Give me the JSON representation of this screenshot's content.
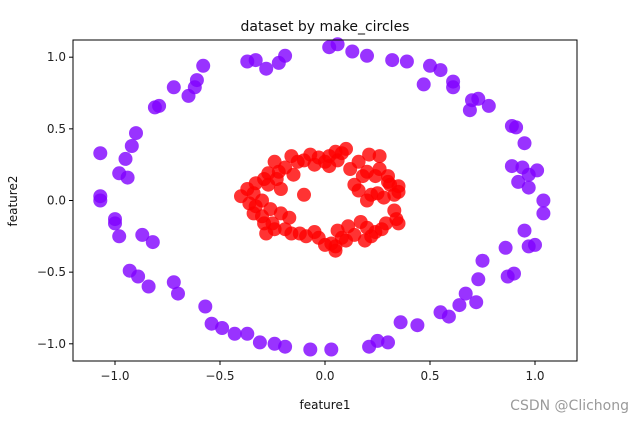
{
  "chart_data": {
    "type": "scatter",
    "title": "dataset by make_circles",
    "xlabel": "feature1",
    "ylabel": "feature2",
    "xlim": [
      -1.2,
      1.2
    ],
    "ylim": [
      -1.12,
      1.12
    ],
    "xticks": [
      -1.0,
      -0.5,
      0.0,
      0.5,
      1.0
    ],
    "xtick_labels": [
      "−1.0",
      "−0.5",
      "0.0",
      "0.5",
      "1.0"
    ],
    "yticks": [
      -1.0,
      -0.5,
      0.0,
      0.5,
      1.0
    ],
    "ytick_labels": [
      "−1.0",
      "−0.5",
      "0.0",
      "0.5",
      "1.0"
    ],
    "grid": false,
    "series": [
      {
        "color": "#8000ff",
        "points": [
          [
            -0.58,
            0.94
          ],
          [
            -0.37,
            0.97
          ],
          [
            -0.33,
            0.98
          ],
          [
            -0.28,
            0.92
          ],
          [
            -0.22,
            0.96
          ],
          [
            -0.19,
            1.01
          ],
          [
            0.02,
            1.07
          ],
          [
            0.06,
            1.09
          ],
          [
            0.13,
            1.04
          ],
          [
            0.2,
            1.01
          ],
          [
            0.32,
            0.98
          ],
          [
            0.39,
            0.97
          ],
          [
            0.5,
            0.94
          ],
          [
            0.55,
            0.91
          ],
          [
            0.61,
            0.83
          ],
          [
            0.47,
            0.81
          ],
          [
            0.61,
            0.79
          ],
          [
            0.7,
            0.7
          ],
          [
            0.73,
            0.71
          ],
          [
            0.78,
            0.66
          ],
          [
            0.69,
            0.63
          ],
          [
            0.89,
            0.52
          ],
          [
            0.91,
            0.51
          ],
          [
            0.95,
            0.4
          ],
          [
            0.89,
            0.24
          ],
          [
            0.94,
            0.23
          ],
          [
            0.97,
            0.18
          ],
          [
            1.01,
            0.21
          ],
          [
            0.92,
            0.13
          ],
          [
            0.97,
            0.09
          ],
          [
            1.04,
            0.0
          ],
          [
            1.04,
            -0.09
          ],
          [
            0.95,
            -0.21
          ],
          [
            0.97,
            -0.32
          ],
          [
            1.0,
            -0.31
          ],
          [
            0.86,
            -0.33
          ],
          [
            0.9,
            -0.51
          ],
          [
            0.87,
            -0.53
          ],
          [
            0.75,
            -0.42
          ],
          [
            0.73,
            -0.55
          ],
          [
            0.67,
            -0.65
          ],
          [
            0.72,
            -0.71
          ],
          [
            0.64,
            -0.73
          ],
          [
            0.55,
            -0.78
          ],
          [
            0.59,
            -0.81
          ],
          [
            0.44,
            -0.87
          ],
          [
            0.36,
            -0.85
          ],
          [
            0.3,
            -0.99
          ],
          [
            0.25,
            -0.98
          ],
          [
            0.21,
            -1.02
          ],
          [
            0.03,
            -1.04
          ],
          [
            -0.07,
            -1.04
          ],
          [
            -0.19,
            -1.02
          ],
          [
            -0.24,
            -1.0
          ],
          [
            -0.31,
            -0.99
          ],
          [
            -0.37,
            -0.93
          ],
          [
            -0.43,
            -0.93
          ],
          [
            -0.49,
            -0.89
          ],
          [
            -0.54,
            -0.86
          ],
          [
            -0.57,
            -0.74
          ],
          [
            -0.7,
            -0.65
          ],
          [
            -0.72,
            -0.57
          ],
          [
            -0.84,
            -0.6
          ],
          [
            -0.89,
            -0.53
          ],
          [
            -0.93,
            -0.49
          ],
          [
            -0.87,
            -0.24
          ],
          [
            -0.82,
            -0.29
          ],
          [
            -1.0,
            -0.16
          ],
          [
            -1.0,
            -0.13
          ],
          [
            -0.98,
            -0.25
          ],
          [
            -1.07,
            0.0
          ],
          [
            -1.07,
            0.03
          ],
          [
            -0.98,
            0.19
          ],
          [
            -0.94,
            0.16
          ],
          [
            -0.95,
            0.29
          ],
          [
            -1.07,
            0.33
          ],
          [
            -0.92,
            0.38
          ],
          [
            -0.9,
            0.47
          ],
          [
            -0.81,
            0.65
          ],
          [
            -0.79,
            0.66
          ],
          [
            -0.72,
            0.79
          ],
          [
            -0.65,
            0.73
          ],
          [
            -0.62,
            0.79
          ],
          [
            -0.61,
            0.84
          ]
        ]
      },
      {
        "color": "#ff0000",
        "points": [
          [
            -0.4,
            0.03
          ],
          [
            -0.34,
            0.05
          ],
          [
            -0.33,
            0.12
          ],
          [
            -0.29,
            0.15
          ],
          [
            -0.27,
            0.11
          ],
          [
            -0.23,
            0.15
          ],
          [
            -0.22,
            0.2
          ],
          [
            -0.27,
            0.19
          ],
          [
            -0.24,
            0.27
          ],
          [
            -0.19,
            0.23
          ],
          [
            -0.16,
            0.31
          ],
          [
            -0.13,
            0.27
          ],
          [
            -0.07,
            0.32
          ],
          [
            -0.1,
            0.28
          ],
          [
            -0.05,
            0.25
          ],
          [
            -0.03,
            0.3
          ],
          [
            0.0,
            0.27
          ],
          [
            0.02,
            0.31
          ],
          [
            0.05,
            0.34
          ],
          [
            0.08,
            0.33
          ],
          [
            0.1,
            0.36
          ],
          [
            0.06,
            0.28
          ],
          [
            0.02,
            0.24
          ],
          [
            0.16,
            0.27
          ],
          [
            0.21,
            0.32
          ],
          [
            0.26,
            0.31
          ],
          [
            0.2,
            0.2
          ],
          [
            0.24,
            0.17
          ],
          [
            0.26,
            0.22
          ],
          [
            0.3,
            0.17
          ],
          [
            0.31,
            0.11
          ],
          [
            0.35,
            0.1
          ],
          [
            0.35,
            0.06
          ],
          [
            0.33,
            0.04
          ],
          [
            0.28,
            0.02
          ],
          [
            0.25,
            0.05
          ],
          [
            0.22,
            0.04
          ],
          [
            0.2,
            0.0
          ],
          [
            0.16,
            0.07
          ],
          [
            0.14,
            0.11
          ],
          [
            0.33,
            -0.07
          ],
          [
            0.34,
            -0.13
          ],
          [
            0.29,
            -0.16
          ],
          [
            0.27,
            -0.2
          ],
          [
            0.24,
            -0.22
          ],
          [
            0.22,
            -0.25
          ],
          [
            0.19,
            -0.28
          ],
          [
            0.14,
            -0.24
          ],
          [
            0.1,
            -0.28
          ],
          [
            0.08,
            -0.26
          ],
          [
            0.06,
            -0.21
          ],
          [
            0.05,
            -0.32
          ],
          [
            0.03,
            -0.3
          ],
          [
            0.0,
            -0.31
          ],
          [
            -0.03,
            -0.26
          ],
          [
            -0.09,
            -0.25
          ],
          [
            -0.12,
            -0.23
          ],
          [
            -0.16,
            -0.23
          ],
          [
            -0.19,
            -0.2
          ],
          [
            -0.24,
            -0.2
          ],
          [
            -0.25,
            -0.16
          ],
          [
            -0.29,
            -0.16
          ],
          [
            -0.3,
            -0.11
          ],
          [
            -0.34,
            -0.09
          ],
          [
            -0.33,
            -0.04
          ],
          [
            -0.36,
            -0.02
          ],
          [
            -0.37,
            0.08
          ],
          [
            -0.3,
            0.0
          ],
          [
            -0.26,
            -0.06
          ],
          [
            -0.21,
            -0.09
          ],
          [
            -0.28,
            -0.23
          ],
          [
            -0.17,
            -0.12
          ],
          [
            -0.1,
            0.04
          ],
          [
            0.11,
            -0.18
          ],
          [
            0.17,
            -0.15
          ],
          [
            0.2,
            -0.19
          ],
          [
            0.18,
            0.17
          ],
          [
            0.12,
            0.22
          ],
          [
            -0.15,
            0.18
          ],
          [
            0.35,
            -0.16
          ],
          [
            0.05,
            -0.35
          ],
          [
            -0.05,
            -0.22
          ],
          [
            0.3,
            0.13
          ],
          [
            -0.21,
            0.08
          ]
        ]
      }
    ]
  },
  "watermark": "CSDN @Clichong"
}
